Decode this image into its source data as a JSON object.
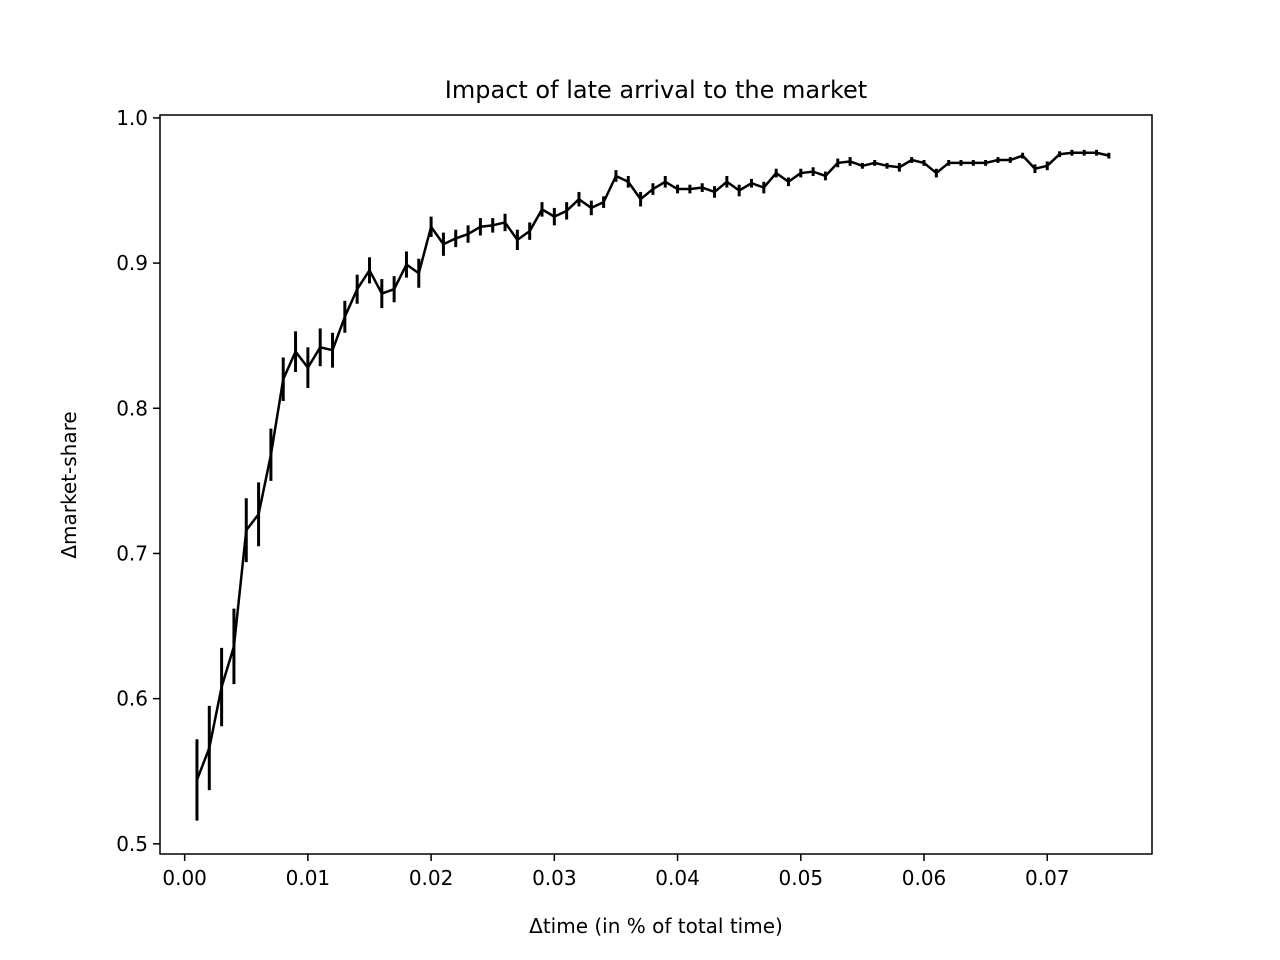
{
  "chart_data": {
    "type": "line",
    "title": "Impact of late arrival to the market",
    "xlabel": "Δtime (in % of total time)",
    "ylabel": "Δmarket-share",
    "xlim": [
      -0.002,
      0.0785
    ],
    "ylim": [
      0.493,
      1.002
    ],
    "xticks": [
      0.0,
      0.01,
      0.02,
      0.03,
      0.04,
      0.05,
      0.06,
      0.07
    ],
    "xtick_labels": [
      "0.00",
      "0.01",
      "0.02",
      "0.03",
      "0.04",
      "0.05",
      "0.06",
      "0.07"
    ],
    "yticks": [
      0.5,
      0.6,
      0.7,
      0.8,
      0.9,
      1.0
    ],
    "ytick_labels": [
      "0.5",
      "0.6",
      "0.7",
      "0.8",
      "0.9",
      "1.0"
    ],
    "grid": false,
    "legend": "none",
    "line_color": "#000000",
    "series": [
      {
        "x": [
          0.001,
          0.002,
          0.003,
          0.004,
          0.005,
          0.006,
          0.007,
          0.008,
          0.009,
          0.01,
          0.011,
          0.012,
          0.013,
          0.014,
          0.015,
          0.016,
          0.017,
          0.018,
          0.019,
          0.02,
          0.021,
          0.022,
          0.023,
          0.024,
          0.025,
          0.026,
          0.027,
          0.028,
          0.029,
          0.03,
          0.031,
          0.032,
          0.033,
          0.034,
          0.035,
          0.036,
          0.037,
          0.038,
          0.039,
          0.04,
          0.041,
          0.042,
          0.043,
          0.044,
          0.045,
          0.046,
          0.047,
          0.048,
          0.049,
          0.05,
          0.051,
          0.052,
          0.053,
          0.054,
          0.055,
          0.056,
          0.057,
          0.058,
          0.059,
          0.06,
          0.061,
          0.062,
          0.063,
          0.064,
          0.065,
          0.066,
          0.067,
          0.068,
          0.069,
          0.07,
          0.071,
          0.072,
          0.073,
          0.074,
          0.075
        ],
        "y": [
          0.544,
          0.566,
          0.608,
          0.636,
          0.716,
          0.727,
          0.768,
          0.82,
          0.839,
          0.828,
          0.842,
          0.84,
          0.863,
          0.882,
          0.895,
          0.879,
          0.882,
          0.899,
          0.893,
          0.925,
          0.913,
          0.917,
          0.92,
          0.925,
          0.926,
          0.928,
          0.916,
          0.922,
          0.937,
          0.932,
          0.936,
          0.944,
          0.938,
          0.942,
          0.96,
          0.956,
          0.944,
          0.951,
          0.956,
          0.951,
          0.951,
          0.952,
          0.949,
          0.956,
          0.95,
          0.955,
          0.952,
          0.962,
          0.956,
          0.962,
          0.963,
          0.96,
          0.969,
          0.97,
          0.967,
          0.969,
          0.967,
          0.966,
          0.971,
          0.969,
          0.962,
          0.969,
          0.969,
          0.969,
          0.969,
          0.971,
          0.971,
          0.974,
          0.965,
          0.967,
          0.975,
          0.976,
          0.976,
          0.976,
          0.974
        ],
        "yerr": [
          0.028,
          0.029,
          0.027,
          0.026,
          0.022,
          0.022,
          0.018,
          0.015,
          0.014,
          0.014,
          0.013,
          0.012,
          0.011,
          0.01,
          0.009,
          0.01,
          0.009,
          0.009,
          0.01,
          0.007,
          0.008,
          0.006,
          0.006,
          0.006,
          0.005,
          0.006,
          0.007,
          0.006,
          0.005,
          0.006,
          0.006,
          0.005,
          0.005,
          0.004,
          0.004,
          0.004,
          0.005,
          0.004,
          0.004,
          0.003,
          0.003,
          0.003,
          0.004,
          0.004,
          0.004,
          0.003,
          0.004,
          0.003,
          0.003,
          0.003,
          0.003,
          0.003,
          0.003,
          0.003,
          0.002,
          0.002,
          0.002,
          0.003,
          0.002,
          0.002,
          0.003,
          0.002,
          0.002,
          0.002,
          0.002,
          0.002,
          0.002,
          0.002,
          0.003,
          0.003,
          0.002,
          0.002,
          0.002,
          0.002,
          0.002
        ]
      }
    ]
  }
}
